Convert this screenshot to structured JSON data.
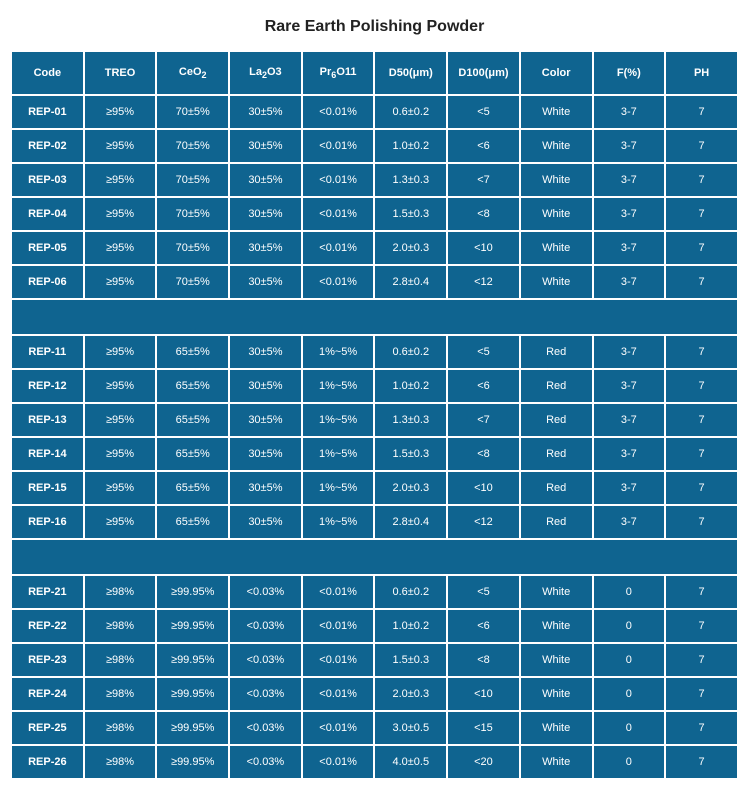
{
  "title": "Rare Earth Polishing Powder",
  "colors": {
    "cell_bg": "#0f6490",
    "text": "#ffffff",
    "page_bg": "#ffffff",
    "spacing": "#ffffff"
  },
  "columns": [
    {
      "key": "code",
      "label_html": "Code"
    },
    {
      "key": "treo",
      "label_html": "TREO"
    },
    {
      "key": "ceo2",
      "label_html": "CeO<sub>2</sub>"
    },
    {
      "key": "la2o3",
      "label_html": "La<sub>2</sub>O3"
    },
    {
      "key": "pr6o11",
      "label_html": "Pr<sub>6</sub>O11"
    },
    {
      "key": "d50",
      "label_html": "D50(μm)"
    },
    {
      "key": "d100",
      "label_html": "D100(μm)"
    },
    {
      "key": "color",
      "label_html": "Color"
    },
    {
      "key": "f",
      "label_html": "F(%)"
    },
    {
      "key": "ph",
      "label_html": "PH"
    }
  ],
  "groups": [
    {
      "rows": [
        {
          "code": "REP-01",
          "treo": "≥95%",
          "ceo2": "70±5%",
          "la2o3": "30±5%",
          "pr6o11": "<0.01%",
          "d50": "0.6±0.2",
          "d100": "<5",
          "color": "White",
          "f": "3-7",
          "ph": "7"
        },
        {
          "code": "REP-02",
          "treo": "≥95%",
          "ceo2": "70±5%",
          "la2o3": "30±5%",
          "pr6o11": "<0.01%",
          "d50": "1.0±0.2",
          "d100": "<6",
          "color": "White",
          "f": "3-7",
          "ph": "7"
        },
        {
          "code": "REP-03",
          "treo": "≥95%",
          "ceo2": "70±5%",
          "la2o3": "30±5%",
          "pr6o11": "<0.01%",
          "d50": "1.3±0.3",
          "d100": "<7",
          "color": "White",
          "f": "3-7",
          "ph": "7"
        },
        {
          "code": "REP-04",
          "treo": "≥95%",
          "ceo2": "70±5%",
          "la2o3": "30±5%",
          "pr6o11": "<0.01%",
          "d50": "1.5±0.3",
          "d100": "<8",
          "color": "White",
          "f": "3-7",
          "ph": "7"
        },
        {
          "code": "REP-05",
          "treo": "≥95%",
          "ceo2": "70±5%",
          "la2o3": "30±5%",
          "pr6o11": "<0.01%",
          "d50": "2.0±0.3",
          "d100": "<10",
          "color": "White",
          "f": "3-7",
          "ph": "7"
        },
        {
          "code": "REP-06",
          "treo": "≥95%",
          "ceo2": "70±5%",
          "la2o3": "30±5%",
          "pr6o11": "<0.01%",
          "d50": "2.8±0.4",
          "d100": "<12",
          "color": "White",
          "f": "3-7",
          "ph": "7"
        }
      ]
    },
    {
      "rows": [
        {
          "code": "REP-11",
          "treo": "≥95%",
          "ceo2": "65±5%",
          "la2o3": "30±5%",
          "pr6o11": "1%~5%",
          "d50": "0.6±0.2",
          "d100": "<5",
          "color": "Red",
          "f": "3-7",
          "ph": "7"
        },
        {
          "code": "REP-12",
          "treo": "≥95%",
          "ceo2": "65±5%",
          "la2o3": "30±5%",
          "pr6o11": "1%~5%",
          "d50": "1.0±0.2",
          "d100": "<6",
          "color": "Red",
          "f": "3-7",
          "ph": "7"
        },
        {
          "code": "REP-13",
          "treo": "≥95%",
          "ceo2": "65±5%",
          "la2o3": "30±5%",
          "pr6o11": "1%~5%",
          "d50": "1.3±0.3",
          "d100": "<7",
          "color": "Red",
          "f": "3-7",
          "ph": "7"
        },
        {
          "code": "REP-14",
          "treo": "≥95%",
          "ceo2": "65±5%",
          "la2o3": "30±5%",
          "pr6o11": "1%~5%",
          "d50": "1.5±0.3",
          "d100": "<8",
          "color": "Red",
          "f": "3-7",
          "ph": "7"
        },
        {
          "code": "REP-15",
          "treo": "≥95%",
          "ceo2": "65±5%",
          "la2o3": "30±5%",
          "pr6o11": "1%~5%",
          "d50": "2.0±0.3",
          "d100": "<10",
          "color": "Red",
          "f": "3-7",
          "ph": "7"
        },
        {
          "code": "REP-16",
          "treo": "≥95%",
          "ceo2": "65±5%",
          "la2o3": "30±5%",
          "pr6o11": "1%~5%",
          "d50": "2.8±0.4",
          "d100": "<12",
          "color": "Red",
          "f": "3-7",
          "ph": "7"
        }
      ]
    },
    {
      "rows": [
        {
          "code": "REP-21",
          "treo": "≥98%",
          "ceo2": "≥99.95%",
          "la2o3": "<0.03%",
          "pr6o11": "<0.01%",
          "d50": "0.6±0.2",
          "d100": "<5",
          "color": "White",
          "f": "0",
          "ph": "7"
        },
        {
          "code": "REP-22",
          "treo": "≥98%",
          "ceo2": "≥99.95%",
          "la2o3": "<0.03%",
          "pr6o11": "<0.01%",
          "d50": "1.0±0.2",
          "d100": "<6",
          "color": "White",
          "f": "0",
          "ph": "7"
        },
        {
          "code": "REP-23",
          "treo": "≥98%",
          "ceo2": "≥99.95%",
          "la2o3": "<0.03%",
          "pr6o11": "<0.01%",
          "d50": "1.5±0.3",
          "d100": "<8",
          "color": "White",
          "f": "0",
          "ph": "7"
        },
        {
          "code": "REP-24",
          "treo": "≥98%",
          "ceo2": "≥99.95%",
          "la2o3": "<0.03%",
          "pr6o11": "<0.01%",
          "d50": "2.0±0.3",
          "d100": "<10",
          "color": "White",
          "f": "0",
          "ph": "7"
        },
        {
          "code": "REP-25",
          "treo": "≥98%",
          "ceo2": "≥99.95%",
          "la2o3": "<0.03%",
          "pr6o11": "<0.01%",
          "d50": "3.0±0.5",
          "d100": "<15",
          "color": "White",
          "f": "0",
          "ph": "7"
        },
        {
          "code": "REP-26",
          "treo": "≥98%",
          "ceo2": "≥99.95%",
          "la2o3": "<0.03%",
          "pr6o11": "<0.01%",
          "d50": "4.0±0.5",
          "d100": "<20",
          "color": "White",
          "f": "0",
          "ph": "7"
        }
      ]
    }
  ]
}
